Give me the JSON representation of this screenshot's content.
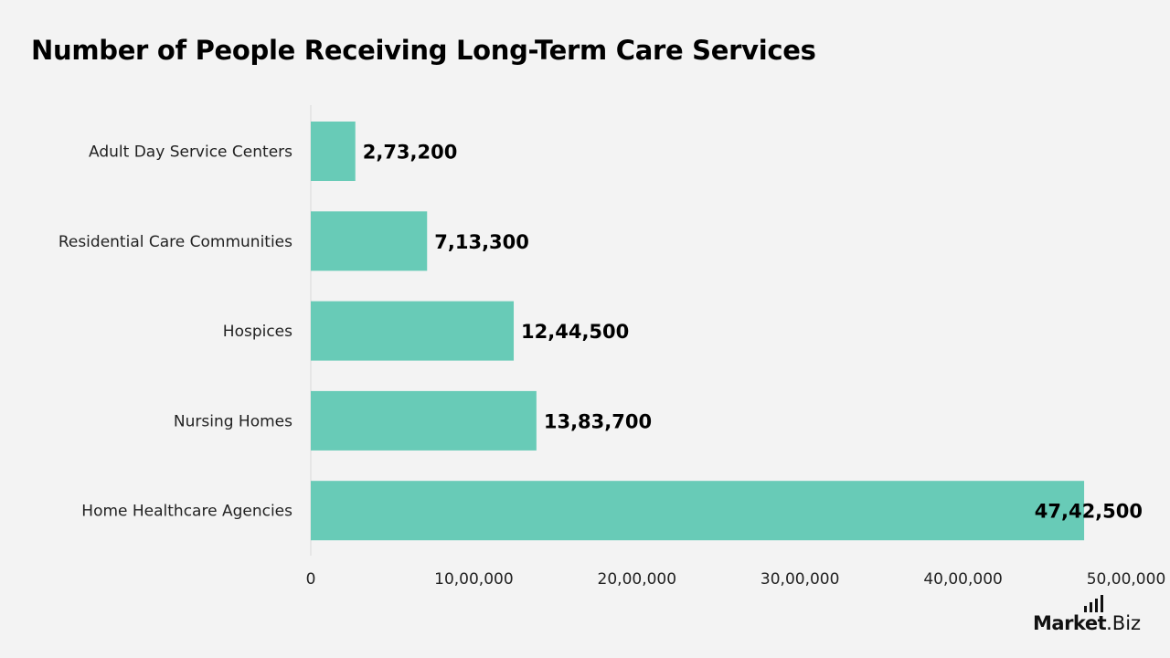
{
  "chart_data": {
    "type": "bar",
    "orientation": "horizontal",
    "title": "Number of People Receiving Long-Term Care Services",
    "xlabel": "",
    "ylabel": "",
    "categories": [
      "Adult Day Service Centers",
      "Residential Care Communities",
      "Hospices",
      "Nursing Homes",
      "Home Healthcare Agencies"
    ],
    "values": [
      273200,
      713300,
      1244500,
      1383700,
      4742500
    ],
    "value_labels": [
      "2,73,200",
      "7,13,300",
      "12,44,500",
      "13,83,700",
      "47,42,500"
    ],
    "xlim": [
      0,
      5000000
    ],
    "ticks": [
      0,
      1000000,
      2000000,
      3000000,
      4000000,
      5000000
    ],
    "tick_labels": [
      "0",
      "10,00,000",
      "20,00,000",
      "30,00,000",
      "40,00,000",
      "50,00,000"
    ],
    "bar_color": "#68cbb7",
    "grid": false,
    "legend": "none"
  },
  "brand": {
    "bold_text": "Market",
    "light_text": ".Biz"
  }
}
